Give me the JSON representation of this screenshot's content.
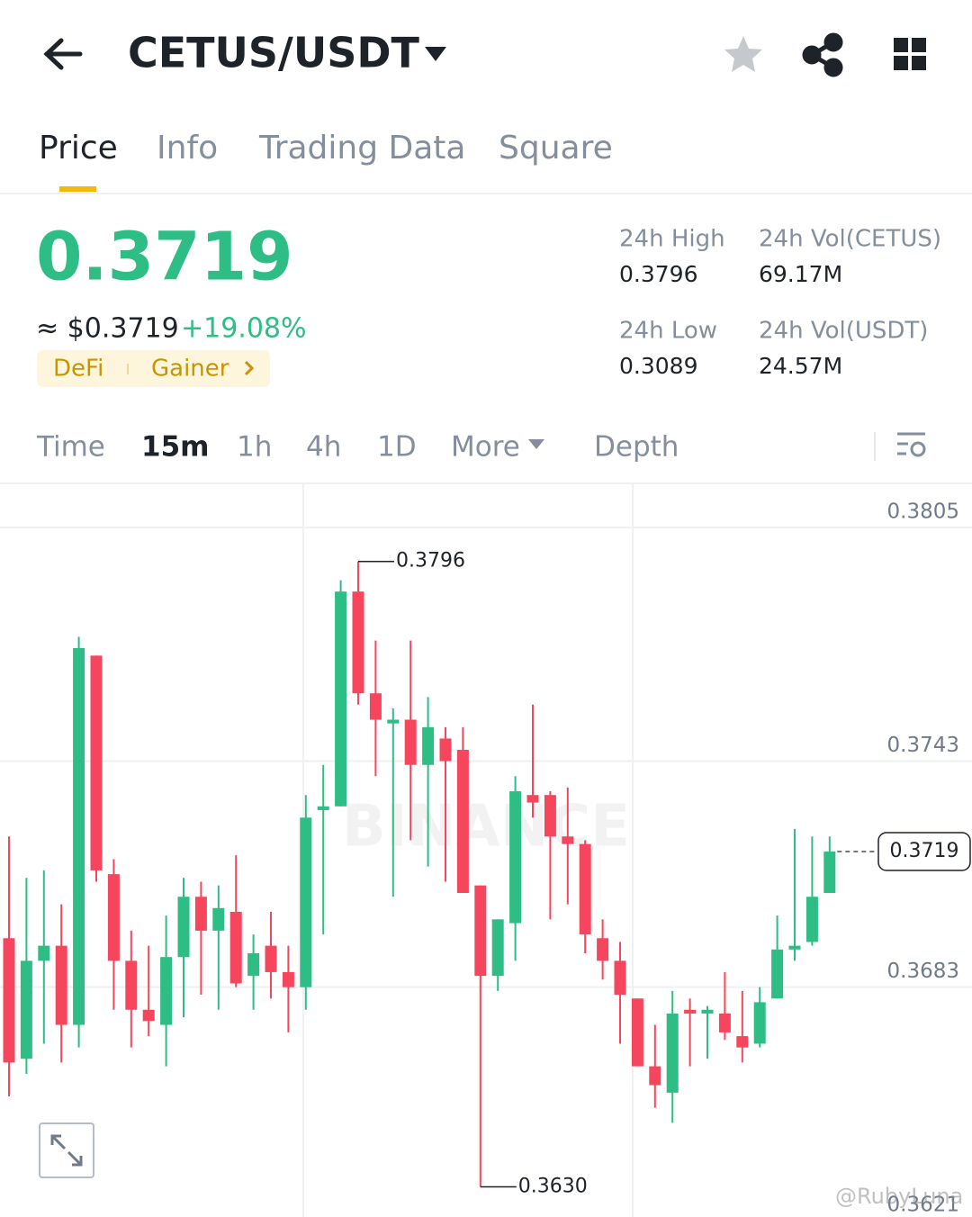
{
  "header": {
    "pair": "CETUS/USDT"
  },
  "tabs": [
    "Price",
    "Info",
    "Trading Data",
    "Square"
  ],
  "ticker": {
    "price": "0.3719",
    "fiat": "≈ $0.3719",
    "change": "+19.08%",
    "tags": [
      "DeFi",
      "Gainer"
    ],
    "stats": [
      {
        "label": "24h High",
        "value": "0.3796"
      },
      {
        "label": "24h Vol(CETUS)",
        "value": "69.17M"
      },
      {
        "label": "24h Low",
        "value": "0.3089"
      },
      {
        "label": "24h Vol(USDT)",
        "value": "24.57M"
      }
    ]
  },
  "intervals": [
    "Time",
    "15m",
    "1h",
    "4h",
    "1D",
    "More",
    "Depth"
  ],
  "watermarks": [
    "BINANCE",
    "@RubyLuna"
  ],
  "chart_data": {
    "type": "candlestick",
    "ylim": [
      0.3622,
      0.3816
    ],
    "yticks": [
      0.3805,
      0.3743,
      0.3683,
      0.3621
    ],
    "grid": true,
    "up_color": "#2ebd85",
    "down_color": "#f6465d",
    "open": [
      0.3696,
      0.3664,
      0.369,
      0.3694,
      0.3673,
      0.3771,
      0.3713,
      0.369,
      0.3677,
      0.3673,
      0.3691,
      0.3707,
      0.3698,
      0.3703,
      0.3686,
      0.3694,
      0.3687,
      0.3683,
      0.373,
      0.3731,
      0.3788,
      0.3761,
      0.3753,
      0.3754,
      0.3742,
      0.3749,
      0.3746,
      0.371,
      0.3686,
      0.37,
      0.3734,
      0.3734,
      0.3723,
      0.3721,
      0.3696,
      0.369,
      0.368,
      0.3662,
      0.3655,
      0.3677,
      0.3676,
      0.3676,
      0.367,
      0.3668,
      0.368,
      0.3693,
      0.3695,
      0.3708
    ],
    "high": [
      0.3723,
      0.3712,
      0.3714,
      0.3705,
      0.3776,
      0.3771,
      0.3717,
      0.3698,
      0.3694,
      0.3702,
      0.3712,
      0.3711,
      0.371,
      0.3718,
      0.3697,
      0.3703,
      0.3694,
      0.3734,
      0.3742,
      0.3791,
      0.3796,
      0.3775,
      0.3757,
      0.3775,
      0.376,
      0.3752,
      0.3752,
      0.371,
      0.3701,
      0.3739,
      0.3758,
      0.3735,
      0.3736,
      0.3722,
      0.3701,
      0.3695,
      0.368,
      0.3673,
      0.3682,
      0.368,
      0.3678,
      0.3687,
      0.3682,
      0.3683,
      0.3702,
      0.3725,
      0.3723,
      0.3723
    ],
    "low": [
      0.3654,
      0.366,
      0.3668,
      0.3663,
      0.3667,
      0.3711,
      0.3677,
      0.3667,
      0.367,
      0.3662,
      0.3675,
      0.3681,
      0.3677,
      0.3683,
      0.3677,
      0.368,
      0.3671,
      0.3677,
      0.3697,
      0.3731,
      0.3758,
      0.3739,
      0.3707,
      0.3722,
      0.3715,
      0.3711,
      0.3708,
      0.363,
      0.3682,
      0.369,
      0.3728,
      0.3701,
      0.3705,
      0.3692,
      0.3685,
      0.3668,
      0.3662,
      0.3651,
      0.3647,
      0.3662,
      0.3664,
      0.3669,
      0.3663,
      0.3667,
      0.368,
      0.369,
      0.3694,
      0.3708
    ],
    "close": [
      0.3663,
      0.369,
      0.3694,
      0.3673,
      0.3773,
      0.3714,
      0.369,
      0.3677,
      0.3674,
      0.3691,
      0.3707,
      0.3698,
      0.3704,
      0.3684,
      0.3692,
      0.3687,
      0.3683,
      0.3728,
      0.3731,
      0.3788,
      0.3761,
      0.3754,
      0.3754,
      0.3742,
      0.3752,
      0.3743,
      0.3708,
      0.3686,
      0.3701,
      0.3735,
      0.3732,
      0.3723,
      0.3721,
      0.3697,
      0.369,
      0.3681,
      0.3662,
      0.3657,
      0.3676,
      0.3676,
      0.3677,
      0.3671,
      0.3667,
      0.3679,
      0.3693,
      0.3694,
      0.3707,
      0.3719
    ],
    "annotations": [
      {
        "value": 0.3796,
        "label": "0.3796"
      },
      {
        "value": 0.363,
        "label": "0.3630"
      }
    ]
  }
}
